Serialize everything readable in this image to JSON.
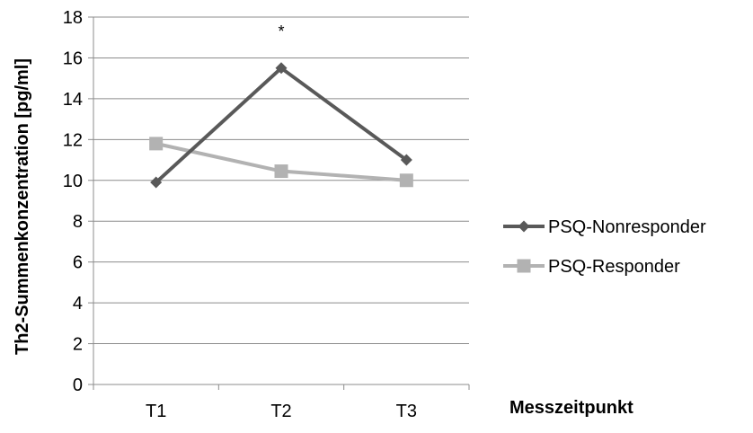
{
  "chart_data": {
    "type": "line",
    "title": "",
    "xlabel": "Messzeitpunkt",
    "ylabel": "Th2-Summenkonzentration [pg/ml]",
    "categories": [
      "T1",
      "T2",
      "T3"
    ],
    "ylim": [
      0,
      18
    ],
    "yticks": [
      0,
      2,
      4,
      6,
      8,
      10,
      12,
      14,
      16,
      18
    ],
    "grid": true,
    "legend_position": "right",
    "series": [
      {
        "name": "PSQ-Nonresponder",
        "values": [
          9.9,
          15.5,
          11.0
        ],
        "color": "#595959",
        "marker": "diamond"
      },
      {
        "name": "PSQ-Responder",
        "values": [
          11.8,
          10.45,
          10.0
        ],
        "color": "#b2b2b2",
        "marker": "square"
      }
    ],
    "annotations": [
      {
        "category": "T2",
        "value": 17.3,
        "text": "*"
      }
    ]
  }
}
